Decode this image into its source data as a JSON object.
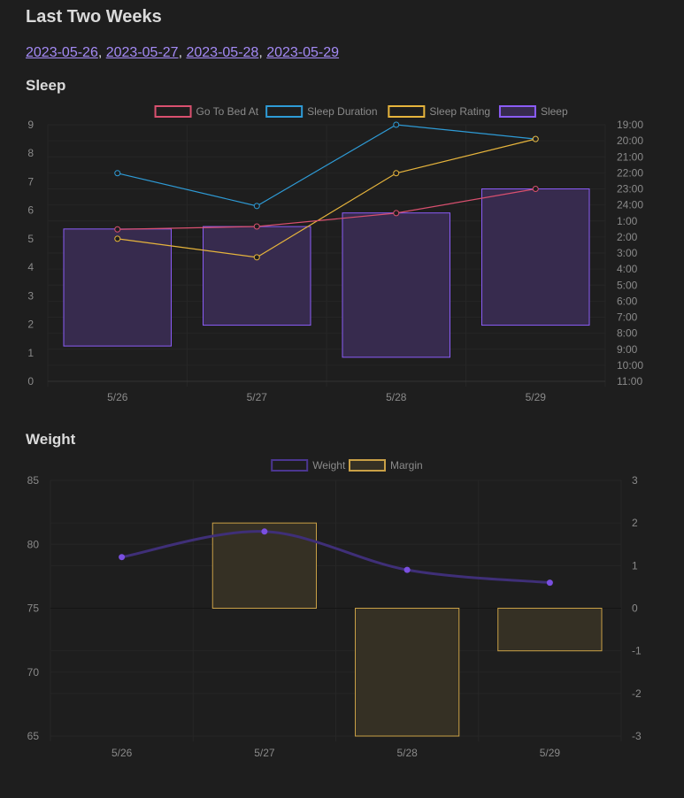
{
  "title": "Last Two Weeks",
  "links": [
    "2023-05-26",
    "2023-05-27",
    "2023-05-28",
    "2023-05-29"
  ],
  "sleep_heading": "Sleep",
  "weight_heading": "Weight",
  "chart_data": [
    {
      "type": "bar+line",
      "title": "Sleep",
      "categories": [
        "5/26",
        "5/27",
        "5/28",
        "5/29"
      ],
      "y_left": {
        "min": 0,
        "max": 9,
        "ticks": [
          "0",
          "1",
          "2",
          "3",
          "4",
          "5",
          "6",
          "7",
          "8",
          "9"
        ]
      },
      "y_right": {
        "ticks": [
          "19:00",
          "20:00",
          "21:00",
          "22:00",
          "23:00",
          "24:00",
          "1:00",
          "2:00",
          "3:00",
          "4:00",
          "5:00",
          "6:00",
          "7:00",
          "8:00",
          "9:00",
          "10:00",
          "11:00"
        ]
      },
      "legend": [
        {
          "name": "Go To Bed At",
          "color": "#d9506f"
        },
        {
          "name": "Sleep Duration",
          "color": "#2e9bd6"
        },
        {
          "name": "Sleep Rating",
          "color": "#e6b43c"
        },
        {
          "name": "Sleep",
          "color": "#8b5cf6"
        }
      ],
      "go_to_bed_at": [
        5.33,
        5.43,
        5.9,
        6.75
      ],
      "sleep_duration": [
        7.3,
        6.15,
        9.0,
        8.5
      ],
      "sleep_rating": [
        5.0,
        4.35,
        7.3,
        8.5
      ],
      "sleep_bars_hours": [
        [
          25.5,
          32.8
        ],
        [
          25.35,
          31.5
        ],
        [
          24.5,
          33.5
        ],
        [
          23.0,
          31.5
        ]
      ]
    },
    {
      "type": "bar+line",
      "title": "Weight",
      "categories": [
        "5/26",
        "5/27",
        "5/28",
        "5/29"
      ],
      "y_left": {
        "min": 65,
        "max": 85,
        "ticks": [
          "65",
          "70",
          "75",
          "80",
          "85"
        ]
      },
      "y_right": {
        "min": -3,
        "max": 3,
        "ticks": [
          "-3",
          "-2",
          "-1",
          "0",
          "1",
          "2",
          "3"
        ]
      },
      "legend": [
        {
          "name": "Weight",
          "color": "#4b3690"
        },
        {
          "name": "Margin",
          "color": "#c9a046"
        }
      ],
      "weight": [
        79,
        81,
        78,
        77
      ],
      "margin": [
        0,
        2,
        -3,
        -1
      ]
    }
  ]
}
